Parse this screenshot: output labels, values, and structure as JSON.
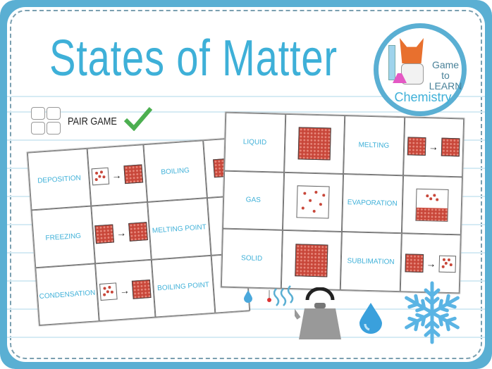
{
  "title": "States of Matter",
  "logo": {
    "line1": "Game to",
    "line2": "LEARN",
    "line3": "Chemistry"
  },
  "badge": {
    "label": "PAIR GAME",
    "icon": "check-icon",
    "check_color": "#4caf50"
  },
  "colors": {
    "frame": "#5aafd3",
    "title": "#3eb0d8",
    "particle": "#c8473a"
  },
  "left_sheet": {
    "cells": [
      "DEPOSITION",
      "gas-to-solid",
      "BOILING",
      "solid",
      "FREEZING",
      "liquid-to-solid",
      "MELTING POINT",
      "",
      "CONDENSATION",
      "gas-to-liquid",
      "BOILING POINT",
      ""
    ]
  },
  "right_sheet": {
    "cells": [
      "LIQUID",
      "liquid",
      "MELTING",
      "solid-to-liquid",
      "GAS",
      "gas",
      "EVAPORATION",
      "evaporation",
      "SOLID",
      "solid",
      "SUBLIMATION",
      "solid-to-gas"
    ]
  },
  "decorations": [
    "water-drop-icon",
    "thermometer-icon",
    "heat-waves-icon",
    "kettle-icon",
    "water-drop-icon",
    "snowflake-icon"
  ]
}
